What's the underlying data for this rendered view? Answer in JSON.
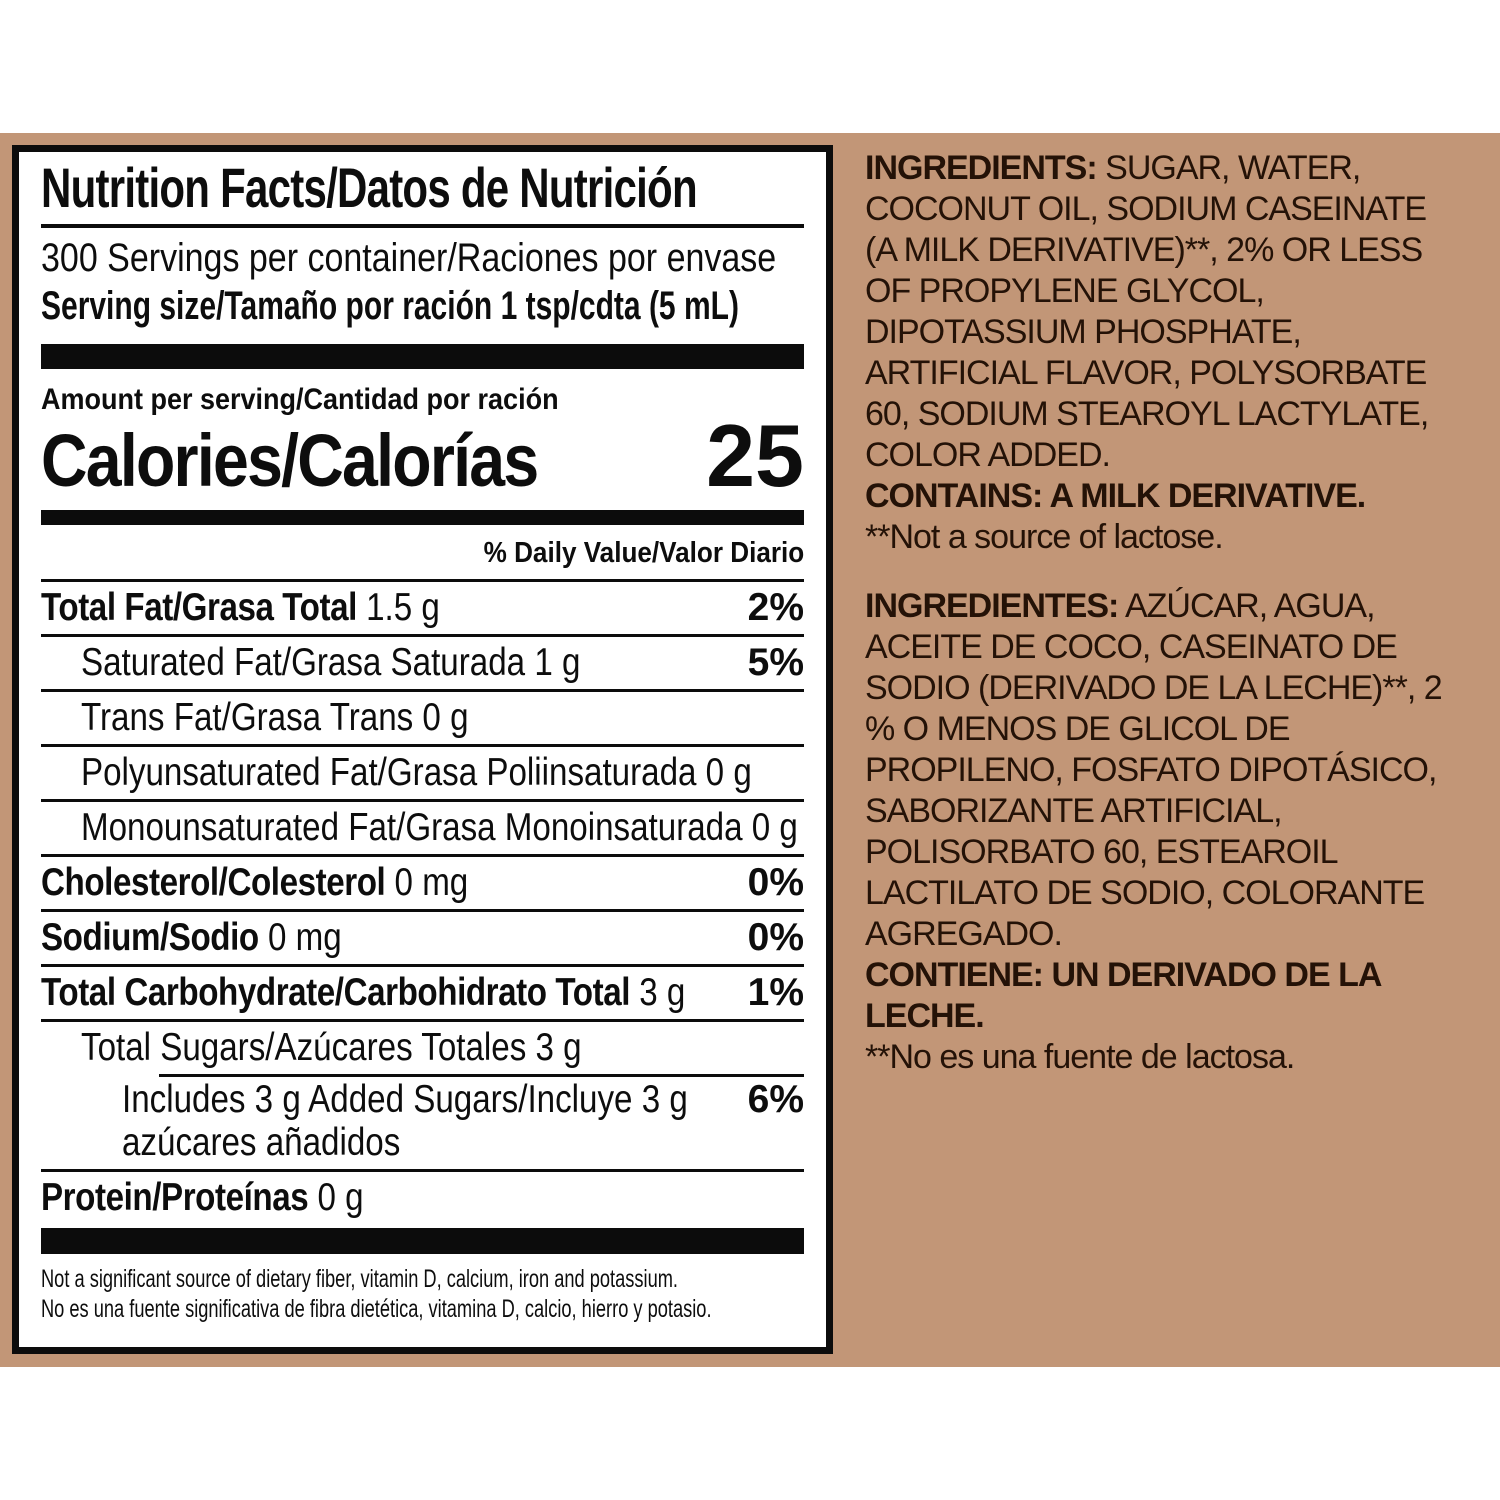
{
  "colors": {
    "background_tan": "#c29677",
    "panel_background": "#ffffff",
    "panel_text": "#0d0d0d",
    "ingredients_text": "#241207"
  },
  "panel": {
    "title": "Nutrition Facts/Datos de Nutrición",
    "servings_per_container": "300 Servings per container/Raciones por envase",
    "serving_size": "Serving size/Tamaño por ración 1 tsp/cdta (5 mL)",
    "amount_per_serving": "Amount per serving/Cantidad por ración",
    "calories_label": "Calories/Calorías",
    "calories_value": "25",
    "daily_value_header": "% Daily Value/Valor Diario",
    "rows": [
      {
        "name": "Total Fat/Grasa Total",
        "value": "1.5 g",
        "dv": "2%"
      },
      {
        "name": "Saturated Fat/Grasa Saturada",
        "value": "1 g",
        "dv": "5%"
      },
      {
        "name": "Trans Fat/Grasa Trans",
        "value": "0 g",
        "dv": ""
      },
      {
        "name": "Polyunsaturated Fat/Grasa Poliinsaturada",
        "value": "0 g",
        "dv": ""
      },
      {
        "name": "Monounsaturated Fat/Grasa Monoinsaturada",
        "value": "0 g",
        "dv": ""
      },
      {
        "name": "Cholesterol/Colesterol",
        "value": "0 mg",
        "dv": "0%"
      },
      {
        "name": "Sodium/Sodio",
        "value": "0 mg",
        "dv": "0%"
      },
      {
        "name": "Total Carbohydrate/Carbohidrato Total",
        "value": "3 g",
        "dv": "1%"
      },
      {
        "name": "Total Sugars/Azúcares Totales",
        "value": "3 g",
        "dv": ""
      },
      {
        "line1": "Includes 3 g Added Sugars/Incluye 3 g",
        "line2": "azúcares añadidos",
        "dv": "6%"
      },
      {
        "name": "Protein/Proteínas",
        "value": "0 g",
        "dv": ""
      }
    ],
    "footnote_en": "Not a significant source of dietary fiber, vitamin D, calcium, iron and potassium.",
    "footnote_es": "No es una fuente significativa de fibra dietética, vitamina D, calcio, hierro y potasio."
  },
  "ingredients": {
    "en": {
      "label": "INGREDIENTS:",
      "text": "SUGAR, WATER, COCONUT OIL, SODIUM CASEINATE (A MILK DERIVATIVE)**, 2% OR LESS OF PROPYLENE GLYCOL, DIPOTASSIUM PHOSPHATE, ARTIFICIAL FLAVOR, POLYSORBATE 60, SODIUM STEAROYL LACTYLATE, COLOR ADDED.",
      "contains": "CONTAINS: A MILK DERIVATIVE.",
      "note": "**Not a source of lactose."
    },
    "es": {
      "label": "INGREDIENTES:",
      "text": "AZÚCAR, AGUA, ACEITE DE COCO, CASEINATO DE SODIO (DERIVADO DE LA LECHE)**, 2 % O MENOS DE GLICOL DE PROPILENO, FOSFATO DIPOTÁSICO, SABORIZANTE ARTIFICIAL, POLISORBATO 60, ESTEAROIL LACTILATO DE SODIO, COLORANTE AGREGADO.",
      "contains": "CONTIENE: UN DERIVADO DE LA LECHE.",
      "note": "**No es una fuente de lactosa."
    }
  }
}
